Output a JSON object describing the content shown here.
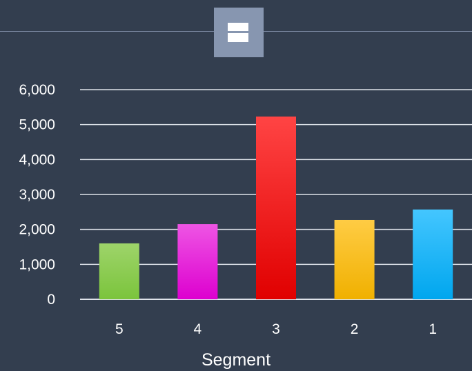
{
  "toolbar": {
    "icon": "layout-split-icon"
  },
  "colors": {
    "background": "#333e4f",
    "grid": "#dfe3ea",
    "text": "#ffffff"
  },
  "chart_data": {
    "type": "bar",
    "title": "",
    "xlabel": "Segment",
    "ylabel": "",
    "categories": [
      "5",
      "4",
      "3",
      "2",
      "1"
    ],
    "values": [
      1600,
      2150,
      5230,
      2270,
      2570
    ],
    "ylim": [
      0,
      6000
    ],
    "yticks": [
      0,
      1000,
      2000,
      3000,
      4000,
      5000,
      6000
    ],
    "ytick_labels": [
      "0",
      "1,000",
      "2,000",
      "3,000",
      "4,000",
      "5,000",
      "6,000"
    ],
    "grid": true,
    "legend": "none",
    "bar_colors": [
      [
        "#9ed46a",
        "#7bc43c"
      ],
      [
        "#ee55e4",
        "#dd00cf"
      ],
      [
        "#ff4444",
        "#e00000"
      ],
      [
        "#ffcc44",
        "#f0b000"
      ],
      [
        "#44c6ff",
        "#00a6ee"
      ]
    ]
  }
}
